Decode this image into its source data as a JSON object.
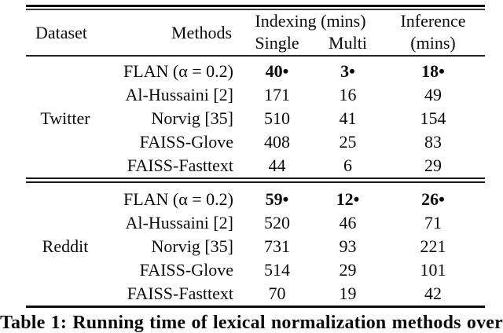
{
  "colors": {
    "text": "#0b0b0b",
    "background": "#ffffff",
    "rule": "#161616"
  },
  "table": {
    "header": {
      "dataset": "Dataset",
      "methods": "Methods",
      "indexing_group": "Indexing (mins)",
      "single": "Single",
      "multi": "Multi",
      "inference_line1": "Inference",
      "inference_line2": "(mins)"
    },
    "best_marker": "•",
    "groups": [
      {
        "dataset": "Twitter",
        "rows": [
          {
            "method": "FLAN (α = 0.2)",
            "single": "40•",
            "multi": "3•",
            "inference": "18•",
            "best": true
          },
          {
            "method": "Al-Hussaini [2]",
            "single": "171",
            "multi": "16",
            "inference": "49",
            "best": false
          },
          {
            "method": "Norvig [35]",
            "single": "510",
            "multi": "41",
            "inference": "154",
            "best": false
          },
          {
            "method": "FAISS-Glove",
            "single": "408",
            "multi": "25",
            "inference": "83",
            "best": false
          },
          {
            "method": "FAISS-Fasttext",
            "single": "44",
            "multi": "6",
            "inference": "29",
            "best": false
          }
        ]
      },
      {
        "dataset": "Reddit",
        "rows": [
          {
            "method": "FLAN (α = 0.2)",
            "single": "59•",
            "multi": "12•",
            "inference": "26•",
            "best": true
          },
          {
            "method": "Al-Hussaini [2]",
            "single": "520",
            "multi": "46",
            "inference": "71",
            "best": false
          },
          {
            "method": "Norvig [35]",
            "single": "731",
            "multi": "93",
            "inference": "221",
            "best": false
          },
          {
            "method": "FAISS-Glove",
            "single": "514",
            "multi": "29",
            "inference": "101",
            "best": false
          },
          {
            "method": "FAISS-Fasttext",
            "single": "70",
            "multi": "19",
            "inference": "42",
            "best": false
          }
        ]
      }
    ]
  },
  "caption": {
    "text": "Table 1: Running time of lexical normalization methods over"
  }
}
